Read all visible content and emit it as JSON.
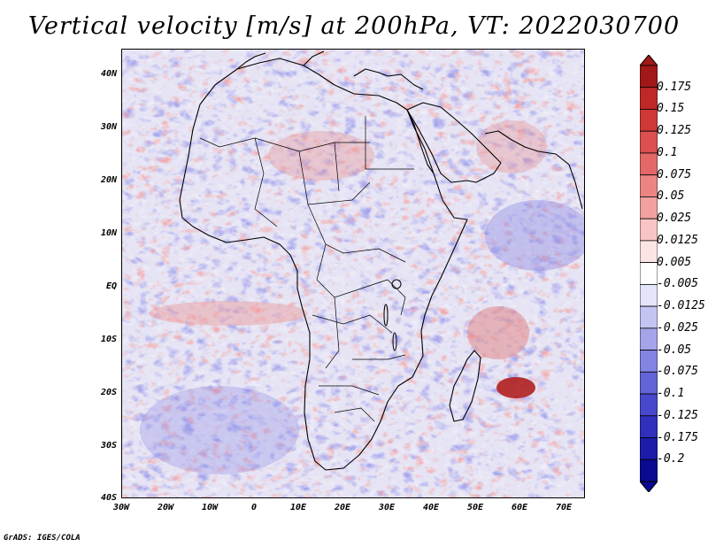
{
  "title": "Vertical velocity [m/s] at 200hPa, VT: 2022030700",
  "credit": "GrADS: IGES/COLA",
  "map": {
    "region": "Africa",
    "field": "vertical velocity",
    "lat_range": [
      -40,
      45
    ],
    "lon_range": [
      -30,
      75
    ],
    "lat_ticks": [
      "40N",
      "30N",
      "20N",
      "10N",
      "EQ",
      "10S",
      "20S",
      "30S",
      "40S"
    ],
    "lat_values": [
      40,
      30,
      20,
      10,
      0,
      -10,
      -20,
      -30,
      -40
    ],
    "lon_ticks": [
      "30W",
      "20W",
      "10W",
      "0",
      "10E",
      "20E",
      "30E",
      "40E",
      "50E",
      "60E",
      "70E"
    ],
    "lon_values": [
      -30,
      -20,
      -10,
      0,
      10,
      20,
      30,
      40,
      50,
      60,
      70
    ]
  },
  "colorbar": {
    "levels": [
      "0.175",
      "0.15",
      "0.125",
      "0.1",
      "0.075",
      "0.05",
      "0.025",
      "0.0125",
      "0.005",
      "-0.005",
      "-0.0125",
      "-0.025",
      "-0.05",
      "-0.075",
      "-0.1",
      "-0.125",
      "-0.175",
      "-0.2"
    ],
    "colors": [
      "#a01818",
      "#c02828",
      "#d03838",
      "#dc5050",
      "#e46868",
      "#ec8484",
      "#f2a0a0",
      "#f8c4c4",
      "#fce4e4",
      "#ffffff",
      "#e4e4fa",
      "#c4c4f2",
      "#a4a4ea",
      "#8484e2",
      "#6464d8",
      "#4848cc",
      "#3030bc",
      "#1c1ca8",
      "#0a0a90"
    ]
  },
  "colors": {
    "background": "#ffffff",
    "coast": "#000000",
    "base_field": "#e8e6f4"
  }
}
